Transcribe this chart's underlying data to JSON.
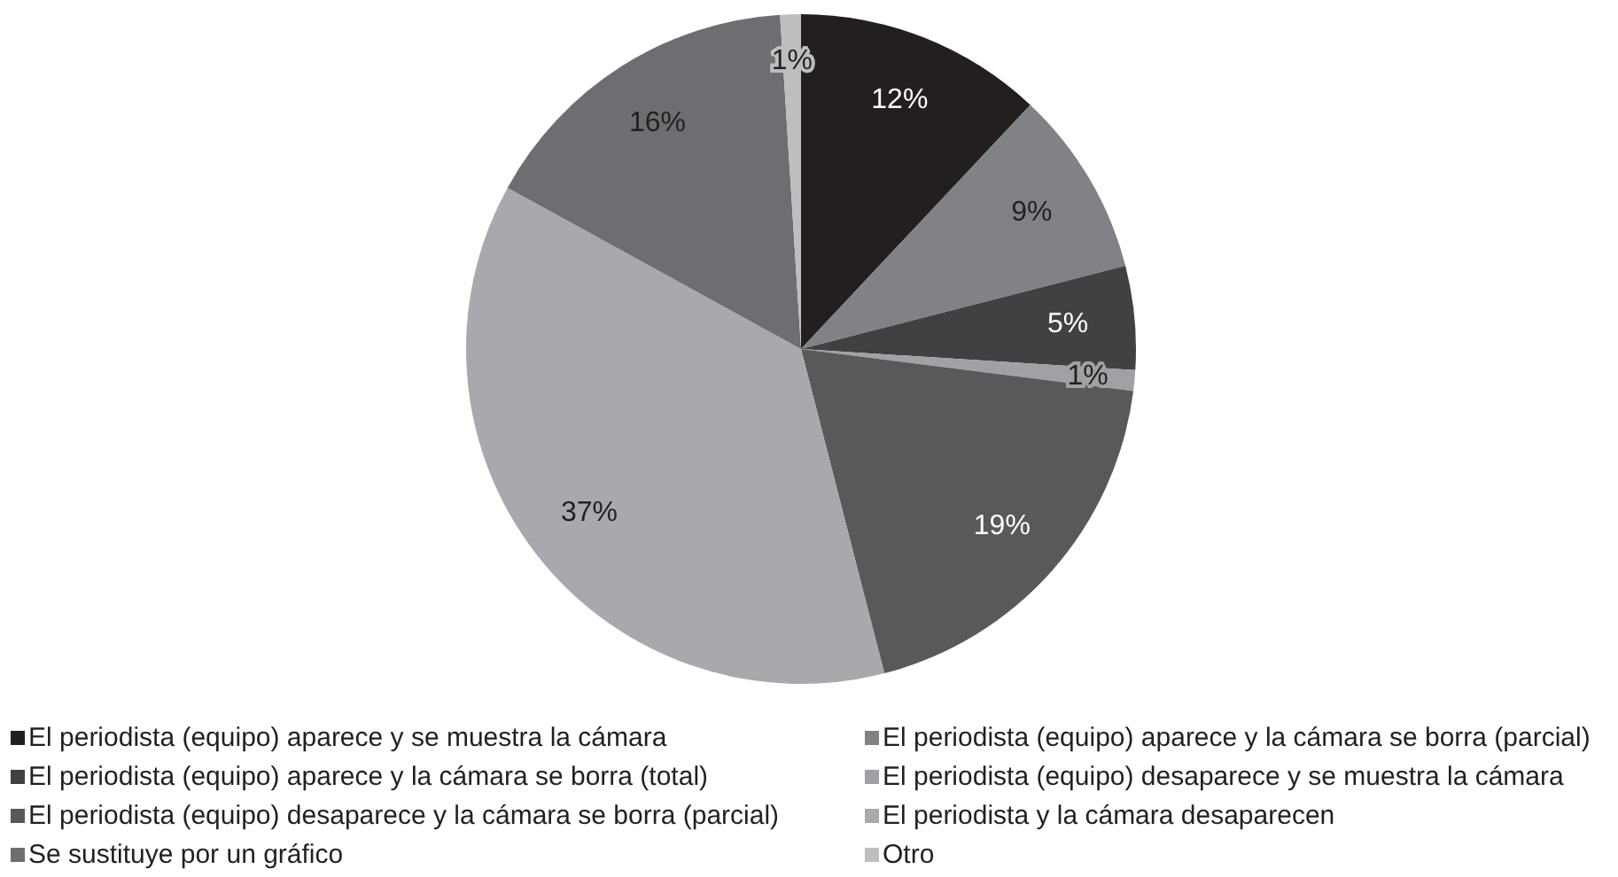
{
  "chart_data": {
    "type": "pie",
    "categories": [
      "El periodista (equipo) aparece y se muestra la cámara",
      "El periodista (equipo) aparece y la cámara se borra (parcial)",
      "El periodista (equipo) aparece y la cámara se borra (total)",
      "El periodista (equipo) desaparece y se muestra la cámara",
      "El periodista (equipo) desaparece y la cámara se borra (parcial)",
      "El periodista y la cámara desaparecen",
      "Se sustituye por un gráfico",
      "Otro"
    ],
    "values": [
      12,
      9,
      5,
      1,
      19,
      37,
      16,
      1
    ],
    "colors": [
      "#231f20",
      "#808285",
      "#414042",
      "#a0a1a4",
      "#58595b",
      "#a7a9ac",
      "#6d6e71",
      "#bcbec0"
    ],
    "value_labels": [
      "12%",
      "9%",
      "5%",
      "1%",
      "19%",
      "37%",
      "16%",
      "1%"
    ],
    "legend": "bottom"
  }
}
